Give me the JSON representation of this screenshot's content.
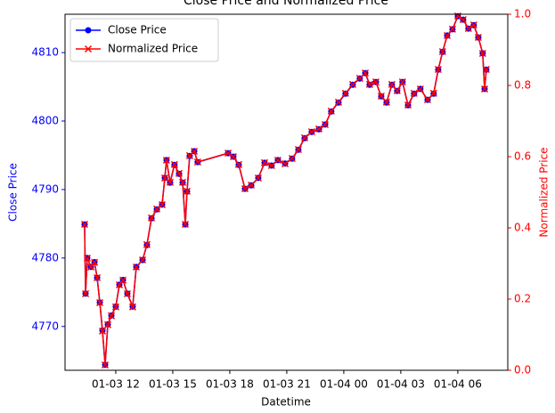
{
  "chart_data": {
    "type": "line",
    "title": "Close Price and Normalized Price",
    "x_label": "Datetime",
    "y_label": "Close Price",
    "y2_label": "Normalized Price",
    "x": [
      10.36,
      10.41,
      10.5,
      10.69,
      10.88,
      11.02,
      11.16,
      11.3,
      11.44,
      11.58,
      11.77,
      12.0,
      12.19,
      12.38,
      12.61,
      12.89,
      13.08,
      13.41,
      13.64,
      13.88,
      14.16,
      14.44,
      14.58,
      14.67,
      14.86,
      15.09,
      15.33,
      15.52,
      15.66,
      15.75,
      15.89,
      16.13,
      16.31,
      17.91,
      18.19,
      18.47,
      18.8,
      19.13,
      19.5,
      19.83,
      20.2,
      20.53,
      20.91,
      21.28,
      21.61,
      21.94,
      22.31,
      22.69,
      23.02,
      23.34,
      23.72,
      24.09,
      24.47,
      24.84,
      25.13,
      25.36,
      25.69,
      25.97,
      26.25,
      26.53,
      26.81,
      27.09,
      27.38,
      27.7,
      28.03,
      28.41,
      28.73,
      28.97,
      29.2,
      29.44,
      29.72,
      30.0,
      30.28,
      30.56,
      30.84,
      31.08,
      31.31,
      31.41,
      31.5
    ],
    "xlim": [
      9.33,
      32.63
    ],
    "xticks": [
      {
        "value": 12,
        "label": "01-03 12"
      },
      {
        "value": 15,
        "label": "01-03 15"
      },
      {
        "value": 18,
        "label": "01-03 18"
      },
      {
        "value": 21,
        "label": "01-03 21"
      },
      {
        "value": 24,
        "label": "01-04 00"
      },
      {
        "value": 27,
        "label": "01-04 03"
      },
      {
        "value": 30,
        "label": "01-04 06"
      }
    ],
    "ylim": [
      4763.6,
      4815.6
    ],
    "yticks": [
      4770,
      4780,
      4790,
      4800,
      4810
    ],
    "y2lim": [
      0,
      1
    ],
    "y2ticks": [
      {
        "value": 0,
        "label": "0.0"
      },
      {
        "value": 0.2,
        "label": "0.2"
      },
      {
        "value": 0.4,
        "label": "0.4"
      },
      {
        "value": 0.6,
        "label": "0.6"
      },
      {
        "value": 0.8,
        "label": "0.8"
      },
      {
        "value": 1,
        "label": "1.0"
      }
    ],
    "legend": "upper left",
    "series": [
      {
        "name": "Close Price",
        "color": "#0000ff",
        "marker": "circle",
        "values": [
          4784.9,
          4774.8,
          4780.0,
          4778.7,
          4779.4,
          4777.1,
          4773.5,
          4769.4,
          4764.4,
          4770.3,
          4771.6,
          4772.9,
          4776.1,
          4776.8,
          4774.8,
          4772.9,
          4778.7,
          4779.7,
          4781.9,
          4785.8,
          4787.1,
          4787.8,
          4791.7,
          4794.3,
          4791.0,
          4793.6,
          4792.3,
          4791.0,
          4784.9,
          4789.7,
          4794.9,
          4795.6,
          4794.0,
          4795.3,
          4794.8,
          4793.6,
          4790.1,
          4790.6,
          4791.7,
          4793.9,
          4793.5,
          4794.3,
          4793.8,
          4794.5,
          4795.8,
          4797.5,
          4798.4,
          4798.8,
          4799.5,
          4801.4,
          4802.7,
          4804.0,
          4805.3,
          4806.2,
          4807.0,
          4805.3,
          4805.7,
          4803.6,
          4802.7,
          4805.3,
          4804.4,
          4805.7,
          4802.3,
          4804.0,
          4804.7,
          4803.1,
          4804.0,
          4807.5,
          4810.1,
          4812.5,
          4813.4,
          4815.3,
          4814.8,
          4813.5,
          4814.0,
          4812.2,
          4809.9,
          4804.7,
          4807.5
        ]
      },
      {
        "name": "Normalized Price",
        "color": "#ff0000",
        "marker": "x",
        "axis": "y2",
        "values": [
          0.41,
          0.215,
          0.315,
          0.29,
          0.303,
          0.26,
          0.19,
          0.11,
          0.015,
          0.128,
          0.153,
          0.178,
          0.24,
          0.253,
          0.215,
          0.178,
          0.29,
          0.31,
          0.353,
          0.428,
          0.453,
          0.465,
          0.54,
          0.59,
          0.528,
          0.578,
          0.553,
          0.528,
          0.41,
          0.503,
          0.603,
          0.615,
          0.585,
          0.61,
          0.6,
          0.578,
          0.51,
          0.52,
          0.54,
          0.583,
          0.575,
          0.59,
          0.58,
          0.595,
          0.62,
          0.653,
          0.67,
          0.678,
          0.69,
          0.728,
          0.753,
          0.778,
          0.803,
          0.82,
          0.835,
          0.803,
          0.81,
          0.77,
          0.753,
          0.803,
          0.785,
          0.81,
          0.745,
          0.778,
          0.79,
          0.76,
          0.778,
          0.845,
          0.895,
          0.94,
          0.958,
          0.995,
          0.985,
          0.96,
          0.97,
          0.935,
          0.89,
          0.79,
          0.845
        ]
      }
    ]
  }
}
